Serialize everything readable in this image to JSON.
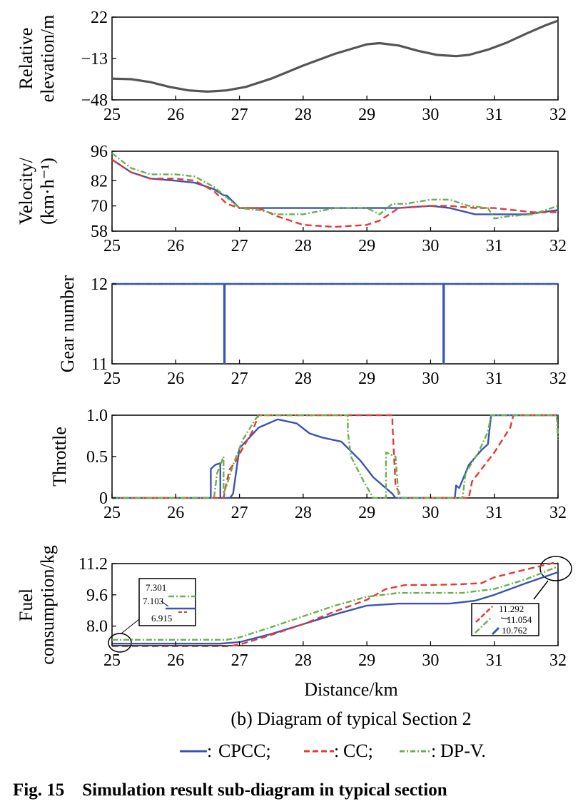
{
  "colors": {
    "cpcc": "#3a55b0",
    "cc": "#e53935",
    "dpv": "#6ab04c",
    "elevation": "#555555"
  },
  "xlabel": "Distance/km",
  "subtitle": "(b) Diagram of typical Section 2",
  "figure_title": "Fig. 15    Simulation result sub-diagram in typical section",
  "legend": [
    {
      "key": "cpcc",
      "label": "CPCC;"
    },
    {
      "key": "cc",
      "label": "CC;"
    },
    {
      "key": "dpv",
      "label": "DP-V."
    }
  ],
  "legend_prefix": ":",
  "chart_data": [
    {
      "type": "line",
      "ylabel_lines": [
        "Relative",
        "elevation/m"
      ],
      "xlim": [
        25,
        32
      ],
      "ylim": [
        -48,
        22
      ],
      "xticks": [
        "25",
        "26",
        "27",
        "28",
        "29",
        "30",
        "31",
        "32"
      ],
      "yticks": [
        {
          "v": 22,
          "label": "22"
        },
        {
          "v": -13,
          "label": "−13"
        },
        {
          "v": -48,
          "label": "−48"
        }
      ],
      "series": [
        {
          "key": "elevation",
          "name": "Elevation",
          "x": [
            25,
            25.3,
            25.6,
            25.9,
            26.2,
            26.5,
            26.8,
            27.1,
            27.5,
            28,
            28.5,
            29,
            29.2,
            29.5,
            29.8,
            30.1,
            30.4,
            30.6,
            30.9,
            31.2,
            31.5,
            31.8,
            32
          ],
          "y": [
            -30,
            -30.5,
            -33,
            -37,
            -40,
            -41,
            -40,
            -37,
            -30,
            -19,
            -9,
            -1,
            0,
            -2,
            -6.5,
            -10,
            -11,
            -10,
            -5.5,
            0.5,
            8,
            15,
            19
          ]
        }
      ]
    },
    {
      "type": "line",
      "ylabel_lines": [
        "Velocity/",
        "(km·h⁻¹)"
      ],
      "xlim": [
        25,
        32
      ],
      "ylim": [
        58,
        96
      ],
      "xticks": [
        "25",
        "26",
        "27",
        "28",
        "29",
        "30",
        "31",
        "32"
      ],
      "yticks": [
        {
          "v": 96,
          "label": "96"
        },
        {
          "v": 82,
          "label": "82"
        },
        {
          "v": 70,
          "label": "70"
        },
        {
          "v": 58,
          "label": "58"
        }
      ],
      "series": [
        {
          "key": "cpcc",
          "name": "CPCC",
          "x": [
            25,
            25.3,
            25.6,
            26,
            26.3,
            26.6,
            26.75,
            26.8,
            27,
            27.5,
            28,
            28.5,
            29,
            29.5,
            30,
            30.3,
            30.7,
            31,
            31.5,
            32
          ],
          "y": [
            92,
            86,
            83,
            82,
            81,
            78,
            75,
            75,
            69,
            69,
            69,
            69,
            69,
            69,
            70,
            69,
            66,
            66,
            66,
            68
          ]
        },
        {
          "key": "cc",
          "name": "CC",
          "x": [
            25,
            25.3,
            25.6,
            26,
            26.3,
            26.6,
            26.8,
            27,
            27.3,
            27.6,
            28,
            28.5,
            29,
            29.2,
            29.5,
            30,
            30.3,
            30.7,
            31,
            31.3,
            31.6,
            32
          ],
          "y": [
            92,
            86,
            83,
            83,
            82,
            77,
            71,
            69,
            69,
            65,
            61,
            60,
            61,
            63,
            69,
            70,
            70,
            69,
            69,
            68,
            67,
            67
          ]
        },
        {
          "key": "dpv",
          "name": "DP-V",
          "x": [
            25,
            25.3,
            25.6,
            26,
            26.3,
            26.6,
            26.8,
            27,
            27.3,
            27.6,
            28,
            28.5,
            29,
            29.2,
            29.4,
            29.6,
            30,
            30.3,
            30.6,
            30.9,
            31,
            31.2,
            31.6,
            32
          ],
          "y": [
            95,
            88,
            85,
            85,
            84,
            79,
            74,
            69,
            68,
            66,
            66,
            69,
            69,
            66,
            71,
            71,
            73,
            73,
            70,
            69,
            64,
            65,
            66,
            70
          ]
        }
      ]
    },
    {
      "type": "line",
      "ylabel_lines": [
        "Gear number"
      ],
      "xlim": [
        25,
        32
      ],
      "ylim": [
        11,
        12
      ],
      "xticks": [
        "25",
        "26",
        "27",
        "28",
        "29",
        "30",
        "31",
        "32"
      ],
      "yticks": [
        {
          "v": 12,
          "label": "12"
        },
        {
          "v": 11,
          "label": "11"
        }
      ],
      "series": [
        {
          "key": "dpv",
          "name": "DP-V",
          "x": [
            25,
            32
          ],
          "y": [
            12,
            12
          ]
        },
        {
          "key": "cpcc",
          "name": "CPCC",
          "x": [
            25,
            26.76,
            26.76,
            26.77,
            26.77,
            30.2,
            30.2,
            30.21,
            30.21,
            32
          ],
          "y": [
            12,
            12,
            11,
            11,
            12,
            12,
            11,
            11,
            12,
            12
          ]
        }
      ]
    },
    {
      "type": "line",
      "ylabel_lines": [
        "Throttle"
      ],
      "xlim": [
        25,
        32
      ],
      "ylim": [
        0,
        1
      ],
      "xticks": [
        "25",
        "26",
        "27",
        "28",
        "29",
        "30",
        "31",
        "32"
      ],
      "yticks": [
        {
          "v": 1.0,
          "label": "1.0"
        },
        {
          "v": 0.5,
          "label": "0.5"
        },
        {
          "v": 0,
          "label": "0"
        }
      ],
      "series": [
        {
          "key": "cpcc",
          "name": "CPCC",
          "x": [
            25,
            26.55,
            26.55,
            26.62,
            26.7,
            26.7,
            26.85,
            26.9,
            27,
            27.3,
            27.6,
            27.9,
            28.1,
            28.3,
            28.6,
            28.9,
            29.1,
            29.4,
            29.45,
            30.38,
            30.4,
            30.45,
            30.6,
            30.8,
            30.9,
            30.95,
            32
          ],
          "y": [
            0,
            0,
            0.35,
            0.4,
            0.42,
            0,
            0,
            0.05,
            0.6,
            0.85,
            0.95,
            0.9,
            0.78,
            0.73,
            0.68,
            0.45,
            0.25,
            0.05,
            0,
            0,
            0.15,
            0.12,
            0.4,
            0.58,
            0.65,
            1,
            1
          ]
        },
        {
          "key": "cc",
          "name": "CC",
          "x": [
            25,
            26.75,
            26.8,
            26.85,
            26.95,
            27.05,
            27.2,
            27.3,
            29.4,
            29.4,
            29.45,
            29.55,
            30.6,
            30.65,
            30.85,
            31.0,
            31.25,
            31.3,
            32
          ],
          "y": [
            0,
            0,
            0.2,
            0.35,
            0.45,
            0.6,
            0.8,
            1,
            1,
            0.9,
            0.15,
            0,
            0,
            0.2,
            0.4,
            0.55,
            0.85,
            1,
            1
          ]
        },
        {
          "key": "dpv",
          "name": "DP-V",
          "x": [
            25,
            26.6,
            26.65,
            26.75,
            26.75,
            26.82,
            26.9,
            27.05,
            27.25,
            27.3,
            28.7,
            28.7,
            28.75,
            28.95,
            29.1,
            29.3,
            29.3,
            29.45,
            29.5,
            30.5,
            30.55,
            30.75,
            30.9,
            30.95,
            31.98,
            32
          ],
          "y": [
            0,
            0,
            0.3,
            0.5,
            0.05,
            0.2,
            0.4,
            0.7,
            0.95,
            1,
            1,
            0.8,
            0.5,
            0.2,
            0,
            0,
            0.55,
            0.5,
            0,
            0,
            0.3,
            0.55,
            0.8,
            1,
            1,
            0.7
          ]
        }
      ]
    },
    {
      "type": "line",
      "ylabel_lines": [
        "Fuel",
        "consumption/kg"
      ],
      "xlim": [
        25,
        32
      ],
      "ylim": [
        7.0,
        11.2
      ],
      "xticks": [
        "25",
        "26",
        "27",
        "28",
        "29",
        "30",
        "31",
        "32"
      ],
      "yticks": [
        {
          "v": 11.2,
          "label": "11.2"
        },
        {
          "v": 9.6,
          "label": "9.6"
        },
        {
          "v": 8.0,
          "label": "8.0"
        }
      ],
      "series": [
        {
          "key": "cpcc",
          "name": "CPCC",
          "x": [
            25,
            26.7,
            27,
            27.5,
            28,
            28.5,
            29,
            29.5,
            30,
            30.3,
            30.7,
            31,
            31.5,
            32
          ],
          "y": [
            7.103,
            7.103,
            7.18,
            7.6,
            8.1,
            8.6,
            9.05,
            9.15,
            9.15,
            9.15,
            9.3,
            9.6,
            10.2,
            10.762
          ]
        },
        {
          "key": "cc",
          "name": "CC",
          "x": [
            25,
            26.7,
            27,
            27.5,
            28,
            28.5,
            29,
            29.3,
            29.6,
            30,
            30.5,
            30.8,
            31,
            31.5,
            32
          ],
          "y": [
            6.915,
            6.915,
            7.05,
            7.55,
            8.1,
            8.75,
            9.35,
            9.9,
            10.1,
            10.1,
            10.15,
            10.2,
            10.5,
            10.9,
            11.292
          ]
        },
        {
          "key": "dpv",
          "name": "DP-V",
          "x": [
            25,
            26.8,
            27,
            27.5,
            28,
            28.5,
            29,
            29.5,
            30,
            30.5,
            31,
            31.5,
            32
          ],
          "y": [
            7.301,
            7.301,
            7.42,
            7.95,
            8.5,
            9.05,
            9.5,
            9.7,
            9.7,
            9.7,
            9.9,
            10.4,
            11.054
          ]
        }
      ],
      "insets": [
        {
          "side": "left",
          "values": [
            {
              "key": "dpv",
              "label": "7.301"
            },
            {
              "key": "cpcc",
              "label": "7.103"
            },
            {
              "key": "cc",
              "label": "6.915"
            }
          ]
        },
        {
          "side": "right",
          "values": [
            {
              "key": "cc",
              "label": "11.292"
            },
            {
              "key": "dpv",
              "label": "11.054"
            },
            {
              "key": "cpcc",
              "label": "10.762"
            }
          ]
        }
      ]
    }
  ]
}
